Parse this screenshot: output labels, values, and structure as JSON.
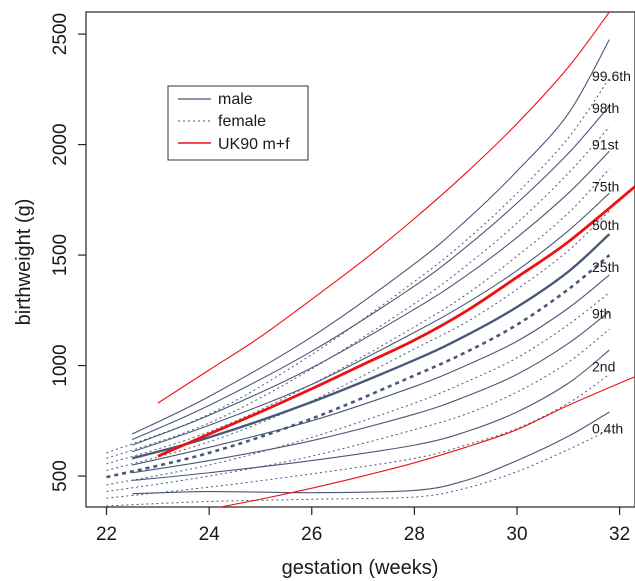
{
  "chart_data": {
    "type": "line",
    "xlabel": "gestation (weeks)",
    "ylabel": "birthweight (g)",
    "xlim": [
      21.6,
      32.3
    ],
    "ylim": [
      360,
      2600
    ],
    "xticks": [
      22,
      24,
      26,
      28,
      30,
      32
    ],
    "yticks": [
      500,
      1000,
      1500,
      2000,
      2500
    ],
    "grid": false,
    "legend": {
      "placement": "top-left",
      "entries": [
        {
          "label": "male",
          "style": "solid",
          "color": "#4a5878"
        },
        {
          "label": "female",
          "style": "dotted",
          "color": "#4a5878"
        },
        {
          "label": "UK90 m+f",
          "style": "solid",
          "color": "#ee1111"
        }
      ]
    },
    "percentile_labels": [
      {
        "text": "99.6th",
        "y": 2310
      },
      {
        "text": "98th",
        "y": 2165
      },
      {
        "text": "91st",
        "y": 2000
      },
      {
        "text": "75th",
        "y": 1810
      },
      {
        "text": "50th",
        "y": 1635
      },
      {
        "text": "25th",
        "y": 1445
      },
      {
        "text": "9th",
        "y": 1235
      },
      {
        "text": "2nd",
        "y": 995
      },
      {
        "text": "0.4th",
        "y": 715
      }
    ],
    "series": [
      {
        "group": "male",
        "centile": "0.4th",
        "style": "solid",
        "x": [
          22.5,
          24,
          26,
          28,
          29,
          30,
          31,
          31.8
        ],
        "y": [
          420,
          430,
          425,
          435,
          480,
          570,
          680,
          790
        ]
      },
      {
        "group": "male",
        "centile": "2nd",
        "style": "solid",
        "x": [
          22.5,
          24,
          26,
          28,
          29,
          30,
          31,
          31.8
        ],
        "y": [
          480,
          515,
          570,
          640,
          700,
          790,
          920,
          1070
        ]
      },
      {
        "group": "male",
        "centile": "9th",
        "style": "solid",
        "x": [
          22.5,
          24,
          26,
          28,
          29,
          30,
          31,
          31.8
        ],
        "y": [
          515,
          570,
          660,
          780,
          860,
          960,
          1100,
          1245
        ]
      },
      {
        "group": "male",
        "centile": "25th",
        "style": "solid",
        "x": [
          22.5,
          24,
          26,
          28,
          29,
          30,
          31,
          31.8
        ],
        "y": [
          550,
          630,
          750,
          905,
          1000,
          1110,
          1260,
          1410
        ]
      },
      {
        "group": "male",
        "centile": "50th",
        "style": "solid",
        "x": [
          22.5,
          24,
          26,
          28,
          29,
          30,
          31,
          31.8
        ],
        "y": [
          580,
          675,
          835,
          1025,
          1135,
          1265,
          1425,
          1595
        ]
      },
      {
        "group": "male",
        "centile": "75th",
        "style": "solid",
        "x": [
          22.5,
          24,
          26,
          28,
          29,
          30,
          31,
          31.8
        ],
        "y": [
          610,
          730,
          915,
          1150,
          1280,
          1430,
          1610,
          1780
        ]
      },
      {
        "group": "male",
        "centile": "91st",
        "style": "solid",
        "x": [
          22.5,
          24,
          26,
          28,
          29,
          30,
          31,
          31.8
        ],
        "y": [
          640,
          775,
          990,
          1255,
          1405,
          1580,
          1780,
          1970
        ]
      },
      {
        "group": "male",
        "centile": "98th",
        "style": "solid",
        "x": [
          22.5,
          24,
          26,
          28,
          29,
          30,
          31,
          31.8
        ],
        "y": [
          665,
          820,
          1065,
          1360,
          1535,
          1735,
          1960,
          2175
        ]
      },
      {
        "group": "male",
        "centile": "99.6th",
        "style": "solid",
        "x": [
          22.5,
          24,
          26,
          28,
          29,
          30,
          31,
          31.8
        ],
        "y": [
          690,
          860,
          1130,
          1460,
          1655,
          1880,
          2140,
          2475
        ]
      },
      {
        "group": "female",
        "centile": "0.4th",
        "style": "dotted",
        "x": [
          22,
          24,
          26,
          28,
          29,
          30,
          31,
          31.8
        ],
        "y": [
          365,
          385,
          395,
          405,
          445,
          520,
          620,
          710
        ]
      },
      {
        "group": "female",
        "centile": "2nd",
        "style": "dotted",
        "x": [
          22,
          24,
          26,
          28,
          29,
          30,
          31,
          31.8
        ],
        "y": [
          400,
          450,
          510,
          580,
          640,
          715,
          830,
          960
        ]
      },
      {
        "group": "female",
        "centile": "9th",
        "style": "dotted",
        "x": [
          22,
          24,
          26,
          28,
          29,
          30,
          31,
          31.8
        ],
        "y": [
          430,
          500,
          590,
          710,
          780,
          880,
          1015,
          1165
        ]
      },
      {
        "group": "female",
        "centile": "25th",
        "style": "dotted",
        "x": [
          22,
          24,
          26,
          28,
          29,
          30,
          31,
          31.8
        ],
        "y": [
          460,
          550,
          675,
          830,
          925,
          1035,
          1185,
          1330
        ]
      },
      {
        "group": "female",
        "centile": "50th",
        "style": "dashed-bold",
        "x": [
          22,
          24,
          26,
          28,
          29,
          30,
          31,
          31.8
        ],
        "y": [
          495,
          605,
          760,
          955,
          1060,
          1185,
          1345,
          1500
        ]
      },
      {
        "group": "female",
        "centile": "75th",
        "style": "dotted",
        "x": [
          22,
          24,
          26,
          28,
          29,
          30,
          31,
          31.8
        ],
        "y": [
          525,
          655,
          840,
          1075,
          1195,
          1345,
          1520,
          1700
        ]
      },
      {
        "group": "female",
        "centile": "91st",
        "style": "dotted",
        "x": [
          22,
          24,
          26,
          28,
          29,
          30,
          31,
          31.8
        ],
        "y": [
          555,
          700,
          915,
          1175,
          1320,
          1495,
          1690,
          1890
        ]
      },
      {
        "group": "female",
        "centile": "98th",
        "style": "dotted",
        "x": [
          22,
          24,
          26,
          28,
          29,
          30,
          31,
          31.8
        ],
        "y": [
          580,
          740,
          985,
          1280,
          1450,
          1645,
          1870,
          2080
        ]
      },
      {
        "group": "female",
        "centile": "99.6th",
        "style": "dotted",
        "x": [
          22,
          24,
          26,
          28,
          29,
          30,
          31,
          31.8
        ],
        "y": [
          605,
          780,
          1050,
          1380,
          1565,
          1780,
          2030,
          2300
        ]
      },
      {
        "group": "UK90",
        "centile": "lower",
        "style": "solid",
        "x": [
          23,
          24,
          25,
          26,
          27,
          28,
          29,
          30,
          31,
          32.3
        ],
        "y": [
          305,
          350,
          395,
          445,
          500,
          560,
          630,
          710,
          820,
          950
        ]
      },
      {
        "group": "UK90",
        "centile": "50th",
        "style": "solid-bold",
        "x": [
          23,
          24,
          25,
          26,
          27,
          28,
          29,
          30,
          31,
          32.3
        ],
        "y": [
          590,
          690,
          790,
          895,
          1005,
          1115,
          1245,
          1400,
          1560,
          1810
        ]
      },
      {
        "group": "UK90",
        "centile": "upper",
        "style": "solid",
        "x": [
          23,
          24,
          25,
          26,
          27,
          28,
          29,
          30,
          31,
          31.8
        ],
        "y": [
          830,
          980,
          1130,
          1300,
          1475,
          1665,
          1870,
          2095,
          2350,
          2600
        ]
      }
    ]
  }
}
